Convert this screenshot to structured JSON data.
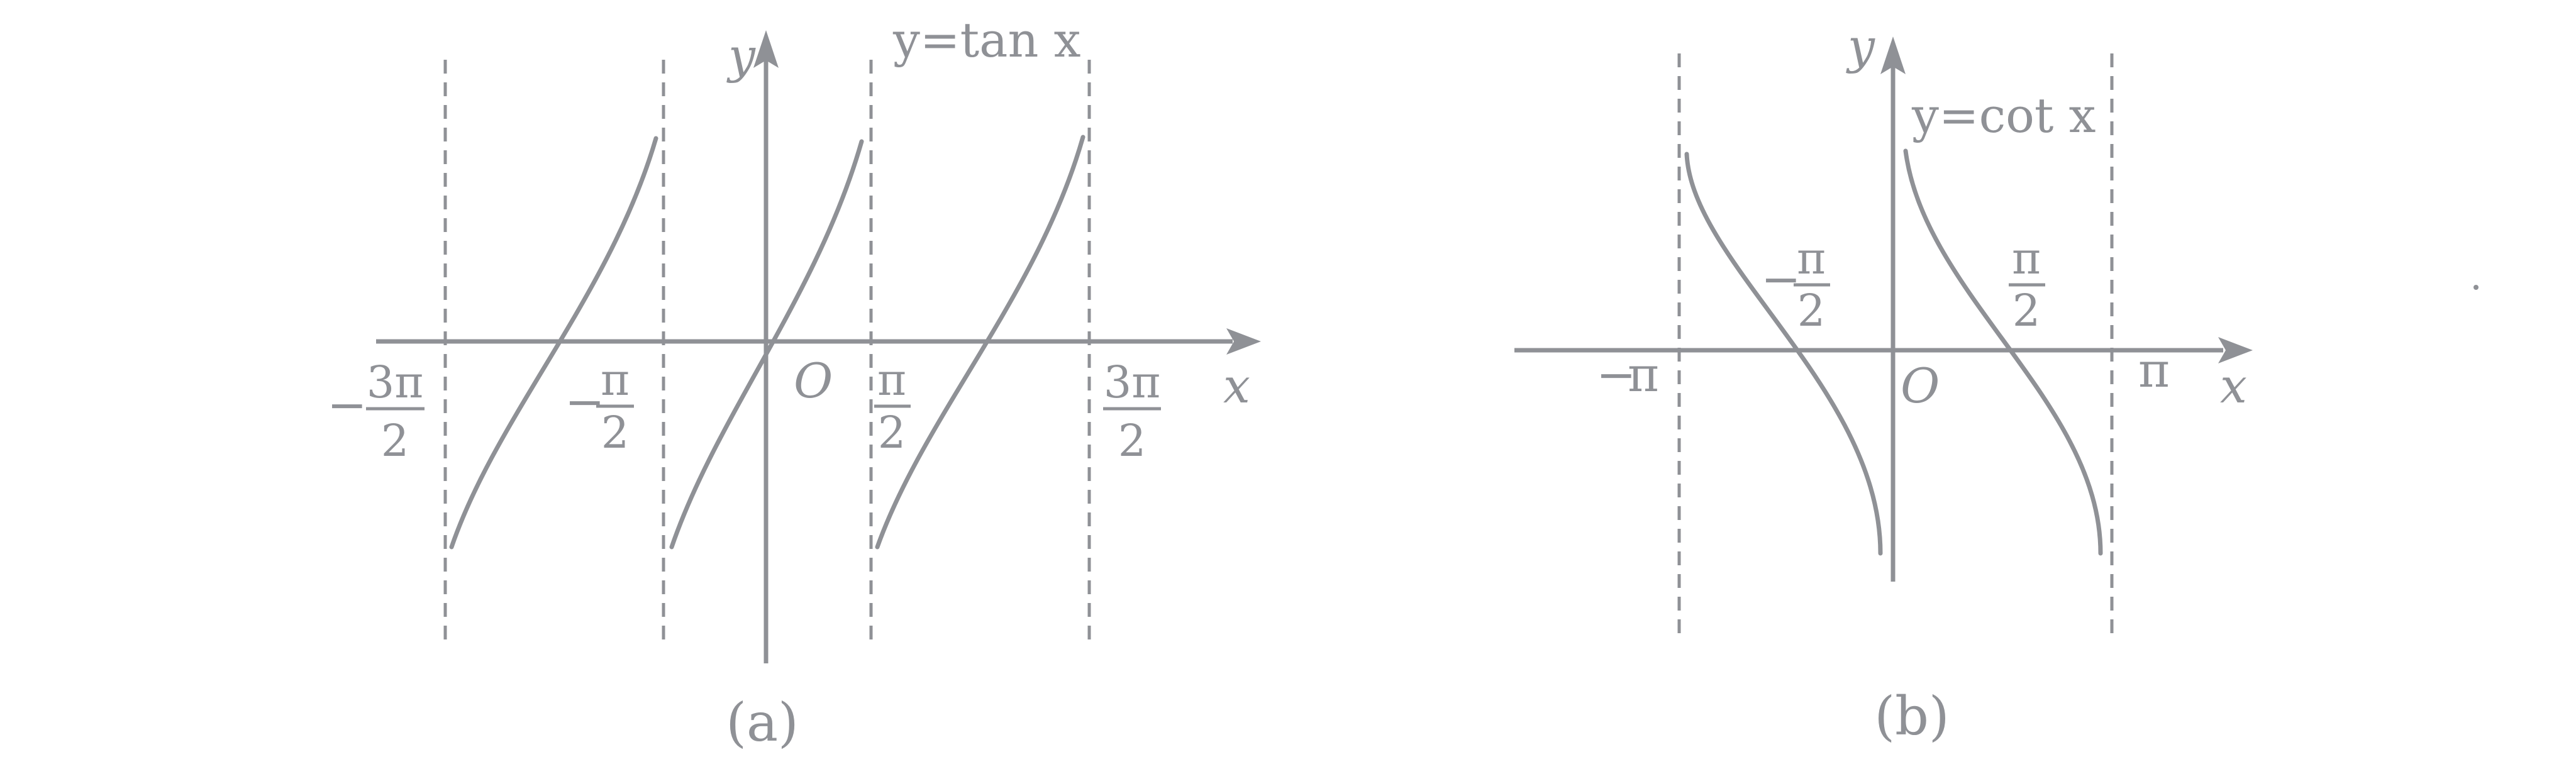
{
  "colors": {
    "ink": "#8f9196",
    "background": "#ffffff"
  },
  "panels": [
    {
      "id": "a",
      "caption": "(a)",
      "function_label": "y=tan x",
      "x_axis_label": "x",
      "y_axis_label": "y",
      "origin_label": "O",
      "tick_labels": [
        {
          "sign": "−",
          "numerator": "3π",
          "denominator": "2"
        },
        {
          "sign": "−",
          "numerator": "π",
          "denominator": "2"
        },
        {
          "sign": "",
          "numerator": "π",
          "denominator": "2"
        },
        {
          "sign": "",
          "numerator": "3π",
          "denominator": "2"
        }
      ]
    },
    {
      "id": "b",
      "caption": "(b)",
      "function_label": "y=cot x",
      "x_axis_label": "x",
      "y_axis_label": "y",
      "origin_label": "O",
      "tick_labels": [
        {
          "sign": "−",
          "numerator": "π",
          "denominator": ""
        },
        {
          "sign": "−",
          "numerator": "π",
          "denominator": "2"
        },
        {
          "sign": "",
          "numerator": "π",
          "denominator": "2"
        },
        {
          "sign": "",
          "numerator": "π",
          "denominator": ""
        }
      ]
    }
  ]
}
